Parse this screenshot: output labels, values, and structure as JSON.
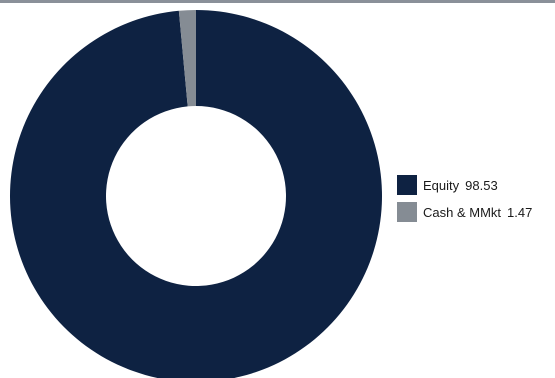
{
  "chart_data": {
    "type": "pie",
    "style": "donut",
    "categories": [
      "Equity",
      "Cash & MMkt"
    ],
    "values": [
      98.53,
      1.47
    ],
    "value_labels": [
      "98.53",
      "1.47"
    ],
    "colors": [
      "#0e2242",
      "#858c94"
    ],
    "start_angle": "12 o'clock",
    "direction": "clockwise",
    "legend_position": "right"
  },
  "legend": [
    {
      "label": "Equity",
      "value": "98.53",
      "color": "#0e2242"
    },
    {
      "label": "Cash & MMkt",
      "value": "1.47",
      "color": "#858c94"
    }
  ]
}
